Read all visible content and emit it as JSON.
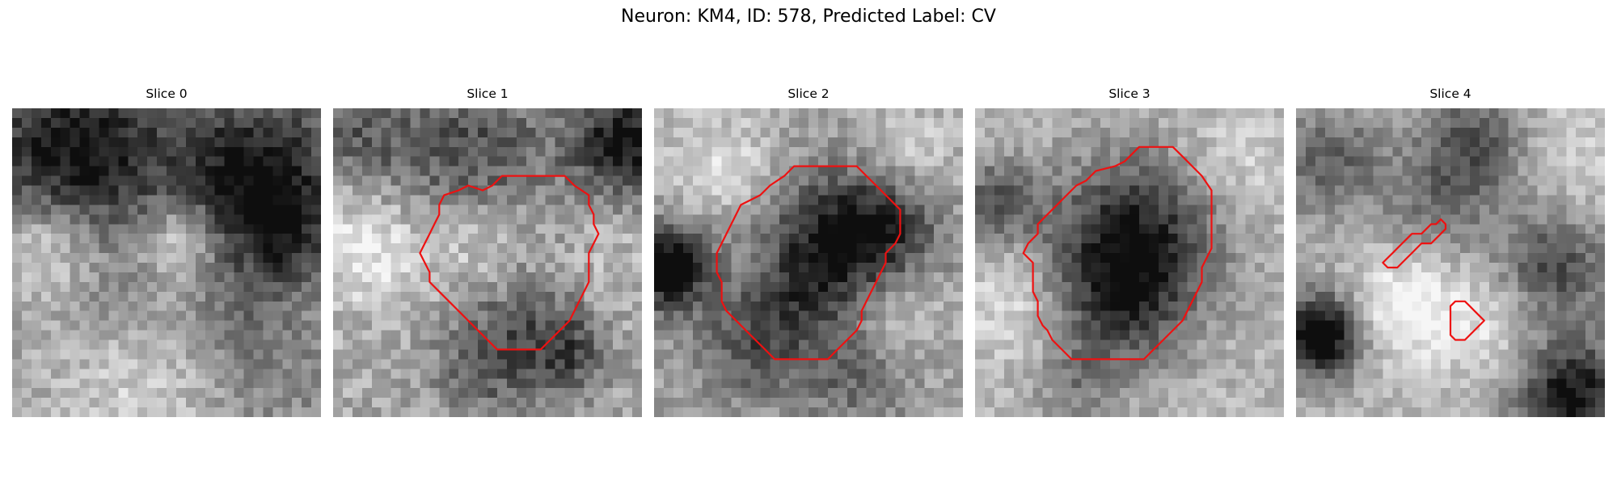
{
  "figure": {
    "title": "Neuron: KM4, ID: 578, Predicted Label: CV"
  },
  "panels": [
    {
      "title": "Slice 0"
    },
    {
      "title": "Slice 1"
    },
    {
      "title": "Slice 2"
    },
    {
      "title": "Slice 3"
    },
    {
      "title": "Slice 4"
    }
  ],
  "colors": {
    "contour": "#ee1111",
    "background": "#ffffff",
    "image_dark": "#141414",
    "image_light": "#f6f6f6"
  }
}
